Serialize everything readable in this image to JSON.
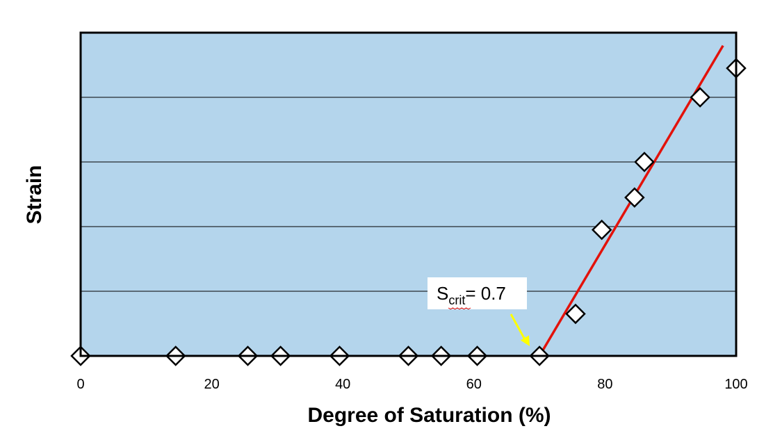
{
  "chart_data": {
    "type": "scatter",
    "title": "",
    "xlabel": "Degree of Saturation (%)",
    "ylabel": "Strain",
    "xlim": [
      0,
      100
    ],
    "ylim": [
      0,
      5
    ],
    "xticks": [
      0,
      20,
      40,
      60,
      80,
      100
    ],
    "ygrid_values": [
      1,
      2,
      3,
      4
    ],
    "grid": "horizontal",
    "legend": "none",
    "series": [
      {
        "marker": "diamond",
        "x": [
          0,
          14.5,
          25.5,
          30.5,
          39.5,
          50,
          55,
          60.5,
          70,
          75.5,
          79.5,
          84.5,
          86,
          94.5,
          100
        ],
        "y": [
          0,
          0,
          0,
          0,
          0,
          0,
          0,
          0,
          0,
          0.65,
          1.95,
          2.45,
          3.0,
          4.0,
          4.45
        ]
      }
    ],
    "trendline": {
      "x": [
        70,
        98
      ],
      "y": [
        0,
        4.8
      ]
    },
    "colors": {
      "plot_background": "#b4d5ec",
      "trendline": "#e3120b",
      "arrow": "#ffff00",
      "marker_fill": "#ffffff",
      "marker_stroke": "#000000"
    },
    "annotation": {
      "text_main": "S",
      "text_sub": "crit",
      "text_tail": "= 0.7",
      "points_to_x": 68.5,
      "points_to_y": 0.15
    }
  }
}
